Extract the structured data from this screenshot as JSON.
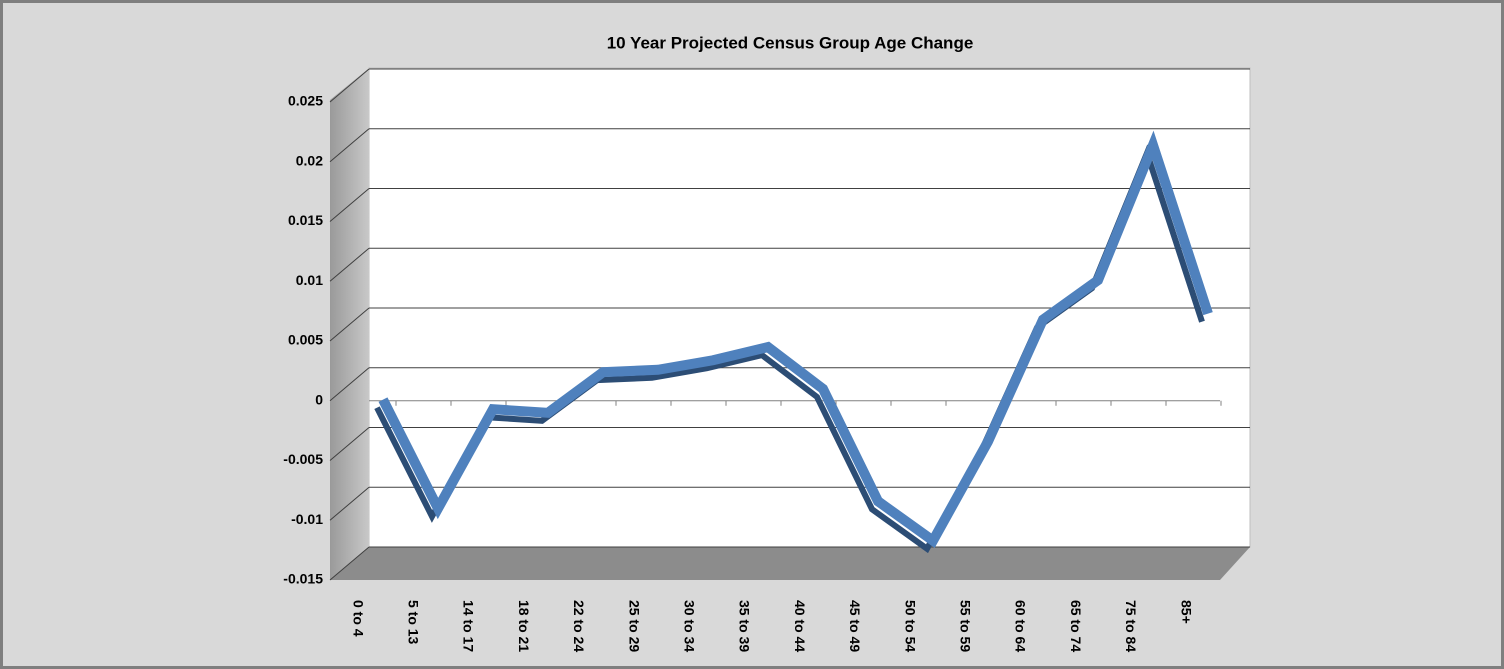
{
  "chart_data": {
    "type": "line",
    "title": "10 Year Projected Census Group Age Change",
    "categories": [
      "0 to 4",
      "5 to 13",
      "14 to 17",
      "18 to 21",
      "22 to 24",
      "25 to 29",
      "30 to 34",
      "35 to 39",
      "40 to 44",
      "45 to 49",
      "50 to 54",
      "55 to 59",
      "60 to 64",
      "65 to 74",
      "75 to 84",
      "85+"
    ],
    "values": [
      -0.0015,
      -0.0106,
      -0.0023,
      -0.0026,
      0.0008,
      0.001,
      0.0018,
      0.0029,
      -0.0006,
      -0.01,
      -0.0133,
      -0.005,
      0.0052,
      0.0085,
      0.0198,
      0.0057
    ],
    "color": "#4f81bd",
    "ylim": [
      -0.015,
      0.025
    ],
    "yticks": [
      -0.015,
      -0.01,
      -0.005,
      0,
      0.005,
      0.01,
      0.015,
      0.02,
      0.025
    ],
    "grid": true
  }
}
